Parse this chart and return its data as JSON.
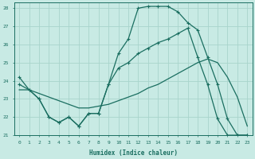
{
  "xlabel": "Humidex (Indice chaleur)",
  "xlim": [
    -0.5,
    23.5
  ],
  "ylim": [
    21,
    28.3
  ],
  "xticks": [
    0,
    1,
    2,
    3,
    4,
    5,
    6,
    7,
    8,
    9,
    10,
    11,
    12,
    13,
    14,
    15,
    16,
    17,
    18,
    19,
    20,
    21,
    22,
    23
  ],
  "yticks": [
    21,
    22,
    23,
    24,
    25,
    26,
    27,
    28
  ],
  "bg_color": "#c8eae4",
  "grid_color": "#a8d4cc",
  "line_color": "#1a6e60",
  "line1_x": [
    0,
    1,
    2,
    3,
    4,
    5,
    6,
    7,
    8,
    9,
    10,
    11,
    12,
    13,
    14,
    15,
    16,
    17,
    18,
    19,
    20,
    21,
    22,
    23
  ],
  "line1_y": [
    24.2,
    23.5,
    23.0,
    22.0,
    21.7,
    22.0,
    21.5,
    22.2,
    22.2,
    23.8,
    25.5,
    26.3,
    28.0,
    28.1,
    28.1,
    28.1,
    27.8,
    27.2,
    26.8,
    25.3,
    23.8,
    21.9,
    21.0,
    21.0
  ],
  "line2_x": [
    0,
    1,
    2,
    3,
    4,
    5,
    6,
    7,
    8,
    9,
    10,
    11,
    12,
    13,
    14,
    15,
    16,
    17,
    18,
    19,
    20,
    21,
    22,
    23
  ],
  "line2_y": [
    23.8,
    23.5,
    23.0,
    22.0,
    21.7,
    22.0,
    21.5,
    22.2,
    22.2,
    23.8,
    24.7,
    25.0,
    25.5,
    25.8,
    26.1,
    26.3,
    26.6,
    26.9,
    25.3,
    23.8,
    21.9,
    21.0,
    21.0,
    21.0
  ],
  "line3_x": [
    0,
    1,
    2,
    3,
    4,
    5,
    6,
    7,
    8,
    9,
    10,
    11,
    12,
    13,
    14,
    15,
    16,
    17,
    18,
    19,
    20,
    21,
    22,
    23
  ],
  "line3_y": [
    23.5,
    23.5,
    23.3,
    23.1,
    22.9,
    22.7,
    22.5,
    22.5,
    22.6,
    22.7,
    22.9,
    23.1,
    23.3,
    23.6,
    23.8,
    24.1,
    24.4,
    24.7,
    25.0,
    25.2,
    25.0,
    24.2,
    23.1,
    21.5
  ]
}
